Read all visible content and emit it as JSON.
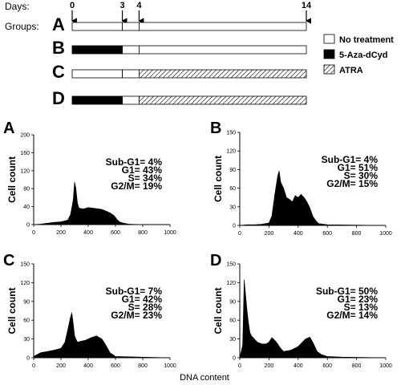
{
  "schedule": {
    "days_label": "Days:",
    "groups_label": "Groups:",
    "days_range": [
      0,
      14
    ],
    "day_ticks": [
      {
        "day": 0,
        "label": "0"
      },
      {
        "day": 3,
        "label": "3"
      },
      {
        "day": 4,
        "label": "4"
      },
      {
        "day": 14,
        "label": "14"
      }
    ],
    "groups": [
      {
        "label": "A",
        "segments": [
          {
            "from": 0,
            "to": 3,
            "treatment": "none"
          },
          {
            "from": 3,
            "to": 4,
            "treatment": "none"
          },
          {
            "from": 4,
            "to": 14,
            "treatment": "none"
          }
        ]
      },
      {
        "label": "B",
        "segments": [
          {
            "from": 0,
            "to": 3,
            "treatment": "aza"
          },
          {
            "from": 3,
            "to": 4,
            "treatment": "none"
          },
          {
            "from": 4,
            "to": 14,
            "treatment": "none"
          }
        ]
      },
      {
        "label": "C",
        "segments": [
          {
            "from": 0,
            "to": 3,
            "treatment": "none"
          },
          {
            "from": 3,
            "to": 4,
            "treatment": "none"
          },
          {
            "from": 4,
            "to": 14,
            "treatment": "atra"
          }
        ]
      },
      {
        "label": "D",
        "segments": [
          {
            "from": 0,
            "to": 3,
            "treatment": "aza"
          },
          {
            "from": 3,
            "to": 4,
            "treatment": "none"
          },
          {
            "from": 4,
            "to": 14,
            "treatment": "atra"
          }
        ]
      }
    ],
    "legend": [
      {
        "key": "none",
        "label": "No treatment"
      },
      {
        "key": "aza",
        "label": "5-Aza-dCyd"
      },
      {
        "key": "atra",
        "label": "ATRA"
      }
    ]
  },
  "shared_xlabel": "DNA content",
  "chart_data": [
    {
      "type": "area",
      "panel": "A",
      "ylabel": "Cell count",
      "xlim": [
        0,
        1000
      ],
      "ylim": [
        0,
        200
      ],
      "xticks": [
        0,
        200,
        400,
        600,
        800,
        1000
      ],
      "yticks": [
        0,
        40,
        80,
        120,
        160,
        200
      ],
      "annotations": [
        "Sub-G1= 4%",
        "G1= 43%",
        "S= 34%",
        "G2/M= 19%"
      ],
      "x": [
        0,
        50,
        100,
        150,
        200,
        250,
        270,
        290,
        300,
        310,
        320,
        330,
        340,
        360,
        380,
        400,
        450,
        500,
        530,
        560,
        590,
        610,
        630,
        660,
        700,
        800,
        1000
      ],
      "y": [
        0,
        1,
        3,
        5,
        6,
        10,
        22,
        55,
        95,
        80,
        50,
        38,
        36,
        35,
        36,
        38,
        36,
        34,
        30,
        26,
        20,
        12,
        6,
        3,
        1,
        0,
        0
      ]
    },
    {
      "type": "area",
      "panel": "B",
      "ylabel": "Cell count",
      "xlim": [
        0,
        1000
      ],
      "ylim": [
        0,
        150
      ],
      "xticks": [
        0,
        200,
        400,
        600,
        800,
        1000
      ],
      "yticks": [
        0,
        30,
        60,
        90,
        120,
        150
      ],
      "annotations": [
        "Sub-G1= 4%",
        "G1= 51%",
        "S= 30%",
        "G2/M= 15%"
      ],
      "x": [
        0,
        50,
        100,
        150,
        200,
        220,
        240,
        260,
        270,
        280,
        300,
        320,
        340,
        360,
        380,
        400,
        420,
        440,
        460,
        480,
        500,
        520,
        540,
        600,
        1000
      ],
      "y": [
        0,
        1,
        1,
        2,
        4,
        15,
        50,
        80,
        88,
        70,
        60,
        45,
        42,
        38,
        48,
        45,
        50,
        45,
        38,
        28,
        15,
        8,
        3,
        1,
        0
      ]
    },
    {
      "type": "area",
      "panel": "C",
      "ylabel": "Cell count",
      "xlim": [
        0,
        1000
      ],
      "ylim": [
        0,
        150
      ],
      "xticks": [
        0,
        200,
        400,
        600,
        800,
        1000
      ],
      "yticks": [
        0,
        30,
        60,
        90,
        120,
        150
      ],
      "annotations": [
        "Sub-G1= 7%",
        "G1= 42%",
        "S= 28%",
        "G2/M= 23%"
      ],
      "x": [
        0,
        50,
        100,
        150,
        200,
        230,
        250,
        270,
        280,
        290,
        300,
        320,
        340,
        380,
        420,
        460,
        500,
        530,
        560,
        600,
        1000
      ],
      "y": [
        2,
        8,
        10,
        12,
        15,
        25,
        45,
        65,
        72,
        55,
        35,
        25,
        26,
        28,
        32,
        35,
        30,
        20,
        8,
        2,
        0
      ]
    },
    {
      "type": "area",
      "panel": "D",
      "ylabel": "Cell count",
      "xlim": [
        0,
        1000
      ],
      "ylim": [
        0,
        150
      ],
      "xticks": [
        0,
        200,
        400,
        600,
        800,
        1000
      ],
      "yticks": [
        0,
        30,
        60,
        90,
        120,
        150
      ],
      "annotations": [
        "Sub-G1= 50%",
        "G1= 23%",
        "S= 13%",
        "G2/M= 14%"
      ],
      "x": [
        0,
        20,
        30,
        40,
        50,
        60,
        70,
        80,
        100,
        120,
        150,
        180,
        200,
        220,
        240,
        260,
        280,
        300,
        350,
        400,
        450,
        480,
        500,
        530,
        560,
        600,
        700,
        1000
      ],
      "y": [
        0,
        20,
        125,
        100,
        75,
        55,
        40,
        35,
        30,
        25,
        22,
        22,
        25,
        32,
        28,
        22,
        15,
        10,
        12,
        18,
        30,
        33,
        25,
        10,
        5,
        2,
        1,
        0
      ]
    }
  ]
}
